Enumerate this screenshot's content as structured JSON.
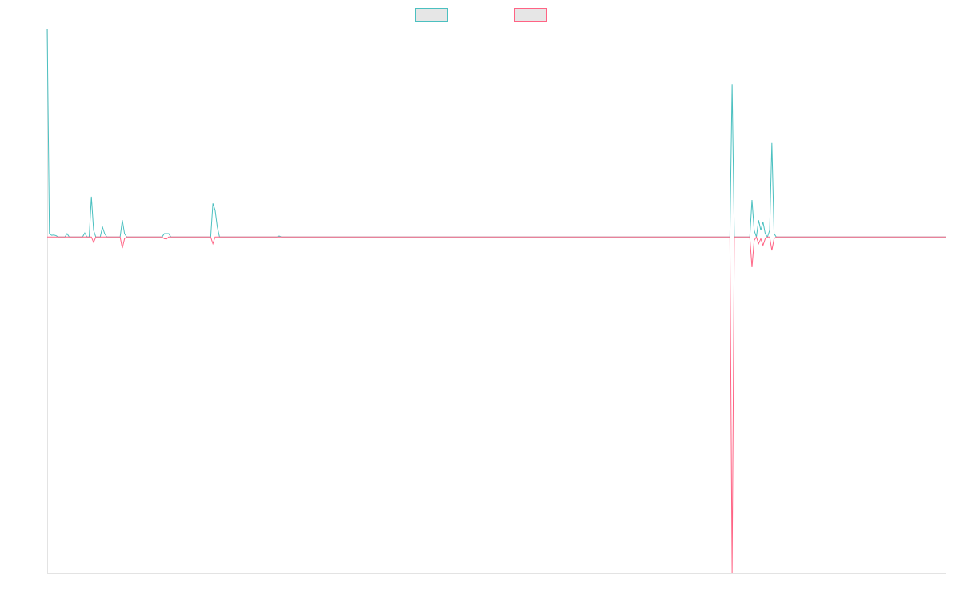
{
  "chart_data": {
    "type": "line",
    "x_count": 408,
    "ylim": [
      -1.0,
      0.62
    ],
    "legend": {
      "placement": "top-center"
    },
    "grid": false,
    "series": [
      {
        "color": "#4bc0c0",
        "fill": "#e6e6e6",
        "values": {
          "0": 0.62,
          "1": 0.01,
          "2": 0.005,
          "3": 0.006,
          "4": 0.004,
          "9": 0.01,
          "17": 0.012,
          "20": 0.12,
          "21": 0.02,
          "25": 0.03,
          "26": 0.01,
          "34": 0.05,
          "35": 0.01,
          "53": 0.01,
          "54": 0.01,
          "55": 0.01,
          "75": 0.1,
          "76": 0.08,
          "77": 0.03,
          "105": 0.003,
          "310": 0.455,
          "311": 0.0,
          "319": 0.11,
          "320": 0.02,
          "322": 0.05,
          "323": 0.02,
          "324": 0.045,
          "325": 0.01,
          "327": 0.02,
          "328": 0.28,
          "329": 0.01
        }
      },
      {
        "color": "#ff6384",
        "fill": "#e6e6e6",
        "values": {
          "21": -0.016,
          "34": -0.033,
          "35": -0.005,
          "53": -0.005,
          "54": -0.006,
          "75": -0.02,
          "310": -1.0,
          "311": 0.0,
          "319": -0.09,
          "320": -0.01,
          "322": -0.02,
          "323": -0.005,
          "324": -0.025,
          "325": -0.005,
          "328": -0.04,
          "329": -0.005
        }
      }
    ]
  }
}
